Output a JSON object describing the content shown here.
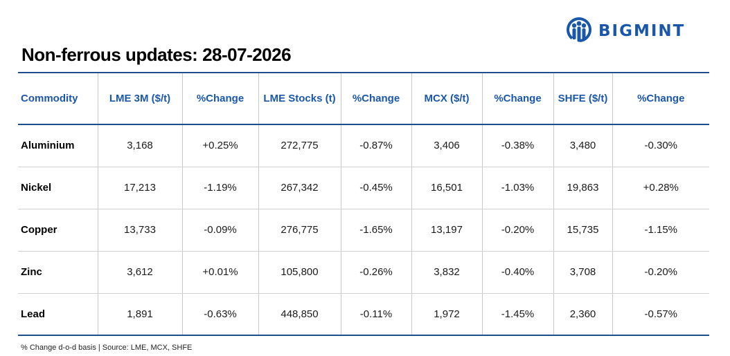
{
  "brand": {
    "name": "BIGMINT",
    "logo_icon": "bigmint-people-icon",
    "color": "#1a57a8"
  },
  "title": "Non-ferrous updates: 28-07-2026",
  "colors": {
    "header_text": "#1a57a8",
    "rule": "#1f4e8c",
    "positive": "#22a33a",
    "negative": "#e0221f"
  },
  "table": {
    "headers": [
      "Commodity",
      "LME 3M ($/t)",
      "%Change",
      "LME Stocks (t)",
      "%Change",
      "MCX ($/t)",
      "%Change",
      "SHFE ($/t)",
      "%Change"
    ],
    "rows": [
      {
        "commodity": "Aluminium",
        "lme3m": "3,168",
        "lme3m_chg": "+0.25%",
        "lme_stocks": "272,775",
        "lme_stocks_chg": "-0.87%",
        "mcx": "3,406",
        "mcx_chg": "-0.38%",
        "shfe": "3,480",
        "shfe_chg": "-0.30%"
      },
      {
        "commodity": "Nickel",
        "lme3m": "17,213",
        "lme3m_chg": "-1.19%",
        "lme_stocks": "267,342",
        "lme_stocks_chg": "-0.45%",
        "mcx": "16,501",
        "mcx_chg": "-1.03%",
        "shfe": "19,863",
        "shfe_chg": "+0.28%"
      },
      {
        "commodity": "Copper",
        "lme3m": "13,733",
        "lme3m_chg": "-0.09%",
        "lme_stocks": "276,775",
        "lme_stocks_chg": "-1.65%",
        "mcx": "13,197",
        "mcx_chg": "-0.20%",
        "shfe": "15,735",
        "shfe_chg": "-1.15%"
      },
      {
        "commodity": "Zinc",
        "lme3m": "3,612",
        "lme3m_chg": "+0.01%",
        "lme_stocks": "105,800",
        "lme_stocks_chg": "-0.26%",
        "mcx": "3,832",
        "mcx_chg": "-0.40%",
        "shfe": "3,708",
        "shfe_chg": "-0.20%"
      },
      {
        "commodity": "Lead",
        "lme3m": "1,891",
        "lme3m_chg": "-0.63%",
        "lme_stocks": "448,850",
        "lme_stocks_chg": "-0.11%",
        "mcx": "1,972",
        "mcx_chg": "-1.45%",
        "shfe": "2,360",
        "shfe_chg": "-0.57%"
      }
    ]
  },
  "footnote": "% Change d-o-d basis | Source: LME, MCX, SHFE"
}
